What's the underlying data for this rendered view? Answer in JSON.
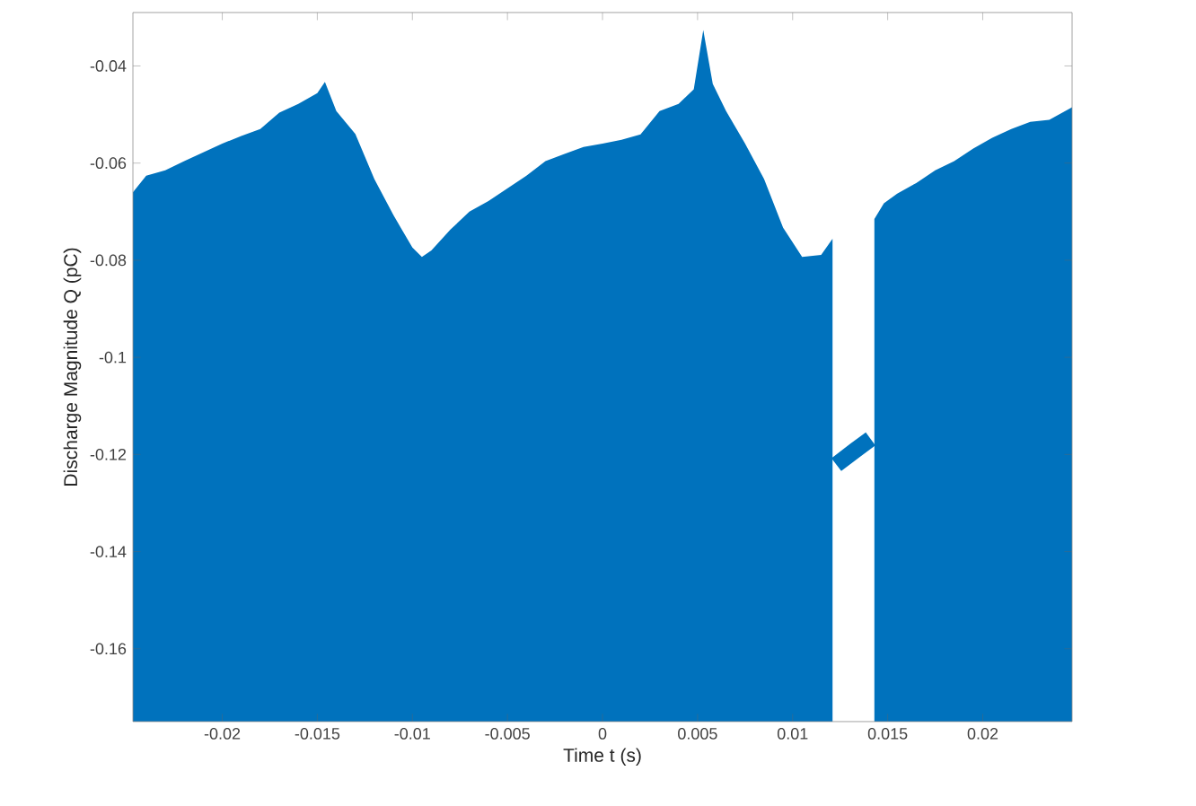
{
  "chart_data": {
    "type": "area",
    "xlabel": "Time t (s)",
    "ylabel": "Discharge Magnitude Q (pC)",
    "xlim": [
      -0.0247,
      0.0247
    ],
    "ylim": [
      -0.175,
      -0.029
    ],
    "xticks": [
      -0.02,
      -0.015,
      -0.01,
      -0.005,
      0,
      0.005,
      0.01,
      0.015,
      0.02
    ],
    "yticks": [
      -0.16,
      -0.14,
      -0.12,
      -0.1,
      -0.08,
      -0.06,
      -0.04
    ],
    "series": [
      {
        "color": "#0072bd",
        "x": [
          -0.0247,
          -0.024,
          -0.023,
          -0.022,
          -0.021,
          -0.02,
          -0.019,
          -0.018,
          -0.017,
          -0.016,
          -0.015,
          -0.0146,
          -0.014,
          -0.013,
          -0.012,
          -0.011,
          -0.01,
          -0.0095,
          -0.009,
          -0.008,
          -0.007,
          -0.006,
          -0.005,
          -0.004,
          -0.003,
          -0.002,
          -0.001,
          0,
          0.001,
          0.002,
          0.003,
          0.004,
          0.0048,
          0.0053,
          0.0058,
          0.0065,
          0.0075,
          0.0085,
          0.0095,
          0.0105,
          0.0115,
          0.0121,
          0.0132,
          0.0143,
          0.0148,
          0.0155,
          0.0165,
          0.0175,
          0.0185,
          0.0195,
          0.0205,
          0.0215,
          0.0225,
          0.0235,
          0.0247
        ],
        "values": [
          -0.066,
          -0.0626,
          -0.0615,
          -0.0596,
          -0.0578,
          -0.056,
          -0.0544,
          -0.053,
          -0.0496,
          -0.0478,
          -0.0456,
          -0.0433,
          -0.0493,
          -0.054,
          -0.0633,
          -0.0707,
          -0.0774,
          -0.0793,
          -0.078,
          -0.0737,
          -0.07,
          -0.0678,
          -0.0652,
          -0.0626,
          -0.0596,
          -0.0581,
          -0.0567,
          -0.056,
          -0.0552,
          -0.0541,
          -0.0493,
          -0.0478,
          -0.0448,
          -0.0326,
          -0.0437,
          -0.0493,
          -0.056,
          -0.0633,
          -0.0733,
          -0.0793,
          -0.0789,
          -0.0756,
          null,
          -0.0715,
          -0.0683,
          -0.0663,
          -0.0641,
          -0.0615,
          -0.0596,
          -0.057,
          -0.0548,
          -0.053,
          -0.0515,
          -0.0511,
          -0.0485
        ]
      },
      {
        "type": "line",
        "color": "#0072bd",
        "x": [
          0.0123,
          0.0133,
          0.0141
        ],
        "values": [
          -0.1221,
          -0.1191,
          -0.1168
        ]
      }
    ]
  }
}
